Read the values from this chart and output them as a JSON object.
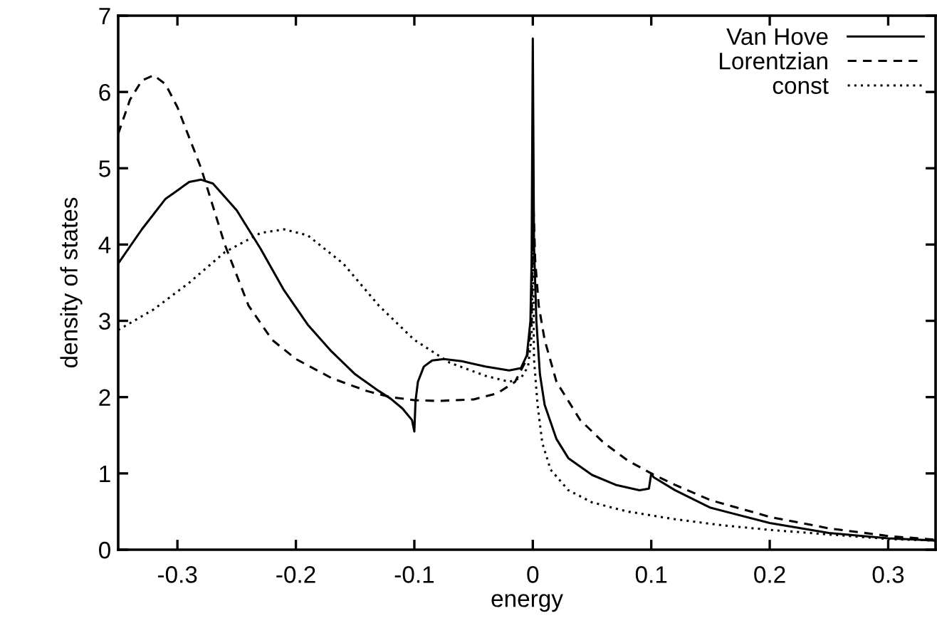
{
  "chart_data": {
    "type": "line",
    "xlabel": "energy",
    "ylabel": "density of states",
    "xlim": [
      -0.35,
      0.34
    ],
    "ylim": [
      0,
      7
    ],
    "xticks": [
      -0.3,
      -0.2,
      -0.1,
      0,
      0.1,
      0.2,
      0.3
    ],
    "yticks": [
      0,
      1,
      2,
      3,
      4,
      5,
      6,
      7
    ],
    "grid": false,
    "legend": "top right",
    "marker": "none",
    "series": [
      {
        "name": "Van Hove",
        "color": "#000000",
        "line_style": "solid",
        "x": [
          -0.35,
          -0.33,
          -0.31,
          -0.29,
          -0.28,
          -0.27,
          -0.25,
          -0.23,
          -0.21,
          -0.19,
          -0.17,
          -0.15,
          -0.13,
          -0.12,
          -0.11,
          -0.102,
          -0.1,
          -0.099,
          -0.097,
          -0.092,
          -0.085,
          -0.075,
          -0.06,
          -0.04,
          -0.02,
          -0.01,
          -0.005,
          -0.002,
          -0.001,
          0,
          0.001,
          0.003,
          0.006,
          0.01,
          0.02,
          0.03,
          0.05,
          0.07,
          0.09,
          0.098,
          0.1,
          0.102,
          0.12,
          0.15,
          0.2,
          0.25,
          0.3,
          0.34
        ],
        "values": [
          3.75,
          4.2,
          4.6,
          4.82,
          4.85,
          4.8,
          4.45,
          3.95,
          3.4,
          2.95,
          2.6,
          2.3,
          2.08,
          1.98,
          1.85,
          1.7,
          1.55,
          1.95,
          2.2,
          2.4,
          2.48,
          2.5,
          2.47,
          2.4,
          2.35,
          2.38,
          2.55,
          3.0,
          3.8,
          6.7,
          4.0,
          3.0,
          2.3,
          1.9,
          1.45,
          1.2,
          0.98,
          0.85,
          0.78,
          0.8,
          1.0,
          0.95,
          0.78,
          0.55,
          0.35,
          0.22,
          0.15,
          0.12
        ]
      },
      {
        "name": "Lorentzian",
        "color": "#000000",
        "line_style": "dashed",
        "x": [
          -0.35,
          -0.34,
          -0.33,
          -0.32,
          -0.31,
          -0.3,
          -0.28,
          -0.26,
          -0.24,
          -0.22,
          -0.2,
          -0.17,
          -0.14,
          -0.12,
          -0.1,
          -0.08,
          -0.05,
          -0.03,
          -0.015,
          -0.005,
          -0.001,
          0,
          0.002,
          0.005,
          0.01,
          0.02,
          0.04,
          0.06,
          0.08,
          0.1,
          0.12,
          0.15,
          0.2,
          0.25,
          0.3,
          0.34
        ],
        "values": [
          5.45,
          5.9,
          6.15,
          6.22,
          6.1,
          5.8,
          5.0,
          4.0,
          3.2,
          2.75,
          2.5,
          2.25,
          2.08,
          2.0,
          1.96,
          1.95,
          1.97,
          2.05,
          2.2,
          2.5,
          3.0,
          4.8,
          3.8,
          3.2,
          2.75,
          2.2,
          1.7,
          1.4,
          1.17,
          1.0,
          0.85,
          0.65,
          0.43,
          0.28,
          0.18,
          0.13
        ]
      },
      {
        "name": "const",
        "color": "#000000",
        "line_style": "dotted",
        "x": [
          -0.35,
          -0.32,
          -0.29,
          -0.26,
          -0.23,
          -0.21,
          -0.19,
          -0.16,
          -0.13,
          -0.1,
          -0.07,
          -0.04,
          -0.02,
          -0.01,
          -0.004,
          -0.001,
          0,
          0.001,
          0.004,
          0.008,
          0.015,
          0.03,
          0.05,
          0.08,
          0.12,
          0.16,
          0.2,
          0.25,
          0.3,
          0.34
        ],
        "values": [
          2.88,
          3.15,
          3.5,
          3.9,
          4.15,
          4.2,
          4.12,
          3.75,
          3.2,
          2.75,
          2.45,
          2.28,
          2.2,
          2.25,
          2.4,
          2.8,
          4.2,
          2.5,
          1.9,
          1.4,
          1.05,
          0.78,
          0.62,
          0.5,
          0.4,
          0.32,
          0.26,
          0.2,
          0.14,
          0.12
        ]
      }
    ]
  }
}
